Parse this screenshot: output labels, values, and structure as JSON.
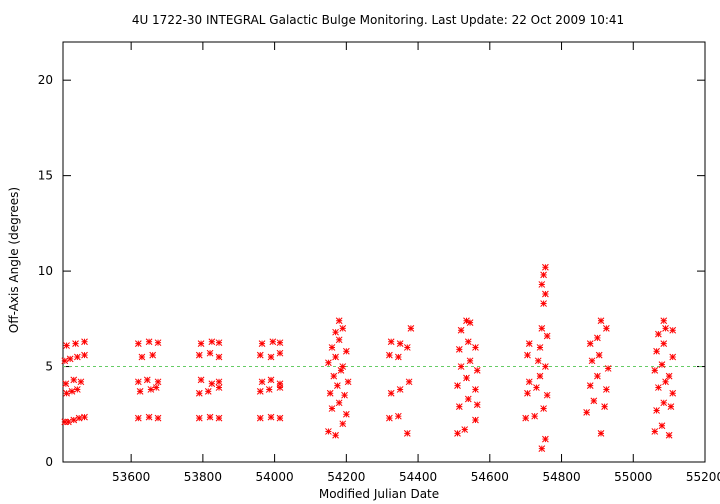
{
  "chart_data": {
    "type": "scatter",
    "title": "4U 1722-30   INTEGRAL Galactic Bulge Monitoring.  Last Update: 22 Oct 2009 10:41",
    "xlabel": "Modified Julian Date",
    "ylabel": "Off-Axis Angle (degrees)",
    "xlim": [
      53410,
      55200
    ],
    "ylim": [
      0,
      22
    ],
    "x_ticks": [
      53600,
      53800,
      54000,
      54200,
      54400,
      54600,
      54800,
      55000,
      55200
    ],
    "x_tick_labels": [
      "53600",
      "53800",
      "54000",
      "54200",
      "54400",
      "54600",
      "54800",
      "55000",
      "55200"
    ],
    "y_ticks": [
      0,
      5,
      10,
      15,
      20
    ],
    "y_tick_labels": [
      "0",
      "5",
      "10",
      "15",
      "20"
    ],
    "grid": false,
    "legend": "none",
    "marker": "asterisk",
    "reference_line": {
      "y": 5,
      "color": "#66cc66",
      "style": "dashed"
    },
    "series": [
      {
        "color": "#ff0000",
        "points": [
          [
            53415,
            2.1
          ],
          [
            53425,
            2.1
          ],
          [
            53440,
            2.2
          ],
          [
            53455,
            2.3
          ],
          [
            53470,
            2.35
          ],
          [
            53420,
            3.6
          ],
          [
            53435,
            3.7
          ],
          [
            53450,
            3.8
          ],
          [
            53418,
            4.1
          ],
          [
            53440,
            4.3
          ],
          [
            53460,
            4.2
          ],
          [
            53415,
            5.3
          ],
          [
            53430,
            5.4
          ],
          [
            53450,
            5.5
          ],
          [
            53470,
            5.6
          ],
          [
            53420,
            6.1
          ],
          [
            53445,
            6.2
          ],
          [
            53470,
            6.3
          ],
          [
            53620,
            2.3
          ],
          [
            53650,
            2.35
          ],
          [
            53675,
            2.3
          ],
          [
            53625,
            3.7
          ],
          [
            53655,
            3.8
          ],
          [
            53670,
            3.9
          ],
          [
            53620,
            4.2
          ],
          [
            53645,
            4.3
          ],
          [
            53675,
            4.2
          ],
          [
            53630,
            5.5
          ],
          [
            53660,
            5.6
          ],
          [
            53620,
            6.2
          ],
          [
            53650,
            6.3
          ],
          [
            53675,
            6.25
          ],
          [
            53790,
            2.3
          ],
          [
            53820,
            2.35
          ],
          [
            53845,
            2.3
          ],
          [
            53790,
            3.6
          ],
          [
            53815,
            3.7
          ],
          [
            53845,
            3.9
          ],
          [
            53795,
            4.3
          ],
          [
            53825,
            4.1
          ],
          [
            53845,
            4.2
          ],
          [
            53790,
            5.6
          ],
          [
            53820,
            5.7
          ],
          [
            53845,
            5.5
          ],
          [
            53795,
            6.2
          ],
          [
            53825,
            6.3
          ],
          [
            53845,
            6.25
          ],
          [
            53960,
            2.3
          ],
          [
            53990,
            2.35
          ],
          [
            54015,
            2.3
          ],
          [
            53960,
            3.7
          ],
          [
            53985,
            3.8
          ],
          [
            54015,
            3.9
          ],
          [
            53965,
            4.2
          ],
          [
            53990,
            4.3
          ],
          [
            54015,
            4.1
          ],
          [
            53960,
            5.6
          ],
          [
            53990,
            5.5
          ],
          [
            54015,
            5.7
          ],
          [
            53965,
            6.2
          ],
          [
            53995,
            6.3
          ],
          [
            54015,
            6.25
          ],
          [
            54150,
            1.6
          ],
          [
            54170,
            1.4
          ],
          [
            54190,
            2.0
          ],
          [
            54160,
            2.8
          ],
          [
            54180,
            3.1
          ],
          [
            54200,
            2.5
          ],
          [
            54155,
            3.6
          ],
          [
            54175,
            4.0
          ],
          [
            54195,
            3.5
          ],
          [
            54165,
            4.5
          ],
          [
            54185,
            4.8
          ],
          [
            54205,
            4.2
          ],
          [
            54150,
            5.2
          ],
          [
            54170,
            5.5
          ],
          [
            54190,
            5.0
          ],
          [
            54160,
            6.0
          ],
          [
            54180,
            6.4
          ],
          [
            54200,
            5.8
          ],
          [
            54170,
            6.8
          ],
          [
            54190,
            7.0
          ],
          [
            54180,
            7.4
          ],
          [
            54320,
            2.3
          ],
          [
            54345,
            2.4
          ],
          [
            54370,
            1.5
          ],
          [
            54325,
            3.6
          ],
          [
            54350,
            3.8
          ],
          [
            54375,
            4.2
          ],
          [
            54320,
            5.6
          ],
          [
            54345,
            5.5
          ],
          [
            54370,
            6.0
          ],
          [
            54325,
            6.3
          ],
          [
            54350,
            6.2
          ],
          [
            54380,
            7.0
          ],
          [
            54510,
            1.5
          ],
          [
            54530,
            1.7
          ],
          [
            54560,
            2.2
          ],
          [
            54515,
            2.9
          ],
          [
            54540,
            3.3
          ],
          [
            54565,
            3.0
          ],
          [
            54510,
            4.0
          ],
          [
            54535,
            4.4
          ],
          [
            54560,
            3.8
          ],
          [
            54520,
            5.0
          ],
          [
            54545,
            5.3
          ],
          [
            54565,
            4.8
          ],
          [
            54515,
            5.9
          ],
          [
            54540,
            6.3
          ],
          [
            54560,
            6.0
          ],
          [
            54520,
            6.9
          ],
          [
            54545,
            7.3
          ],
          [
            54535,
            7.4
          ],
          [
            54700,
            2.3
          ],
          [
            54725,
            2.4
          ],
          [
            54745,
            0.7
          ],
          [
            54755,
            1.2
          ],
          [
            54705,
            3.6
          ],
          [
            54730,
            3.9
          ],
          [
            54750,
            2.8
          ],
          [
            54710,
            4.2
          ],
          [
            54740,
            4.5
          ],
          [
            54760,
            3.5
          ],
          [
            54705,
            5.6
          ],
          [
            54735,
            5.3
          ],
          [
            54755,
            5.0
          ],
          [
            54710,
            6.2
          ],
          [
            54740,
            6.0
          ],
          [
            54760,
            6.6
          ],
          [
            54745,
            7.0
          ],
          [
            54750,
            8.3
          ],
          [
            54755,
            8.8
          ],
          [
            54745,
            9.3
          ],
          [
            54750,
            9.8
          ],
          [
            54755,
            10.2
          ],
          [
            54870,
            2.6
          ],
          [
            54890,
            3.2
          ],
          [
            54910,
            1.5
          ],
          [
            54920,
            2.9
          ],
          [
            54880,
            4.0
          ],
          [
            54900,
            4.5
          ],
          [
            54925,
            3.8
          ],
          [
            54885,
            5.3
          ],
          [
            54905,
            5.6
          ],
          [
            54930,
            4.9
          ],
          [
            54880,
            6.2
          ],
          [
            54900,
            6.5
          ],
          [
            54925,
            7.0
          ],
          [
            54910,
            7.4
          ],
          [
            55060,
            1.6
          ],
          [
            55080,
            1.9
          ],
          [
            55100,
            1.4
          ],
          [
            55065,
            2.7
          ],
          [
            55085,
            3.1
          ],
          [
            55105,
            2.9
          ],
          [
            55070,
            3.9
          ],
          [
            55090,
            4.2
          ],
          [
            55110,
            3.6
          ],
          [
            55060,
            4.8
          ],
          [
            55080,
            5.1
          ],
          [
            55100,
            4.5
          ],
          [
            55065,
            5.8
          ],
          [
            55085,
            6.2
          ],
          [
            55110,
            5.5
          ],
          [
            55070,
            6.7
          ],
          [
            55090,
            7.0
          ],
          [
            55110,
            6.9
          ],
          [
            55085,
            7.4
          ]
        ]
      }
    ]
  }
}
